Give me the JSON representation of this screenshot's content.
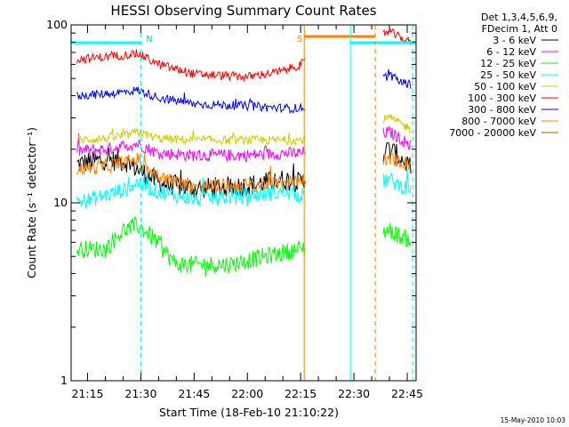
{
  "chart_data": {
    "type": "line",
    "title": "HESSI Observing Summary Count Rates",
    "xlabel": "Start Time (18-Feb-10 21:10:22)",
    "ylabel": "Count Rate (s⁻¹ detector⁻¹)",
    "y_scale": "log",
    "ylim": [
      1,
      100
    ],
    "xlim": [
      "21:10:22",
      "22:47:30"
    ],
    "x_ticks": [
      "21:15",
      "21:30",
      "21:45",
      "22:00",
      "22:15",
      "22:30",
      "22:45"
    ],
    "y_ticks": [
      "1",
      "10",
      "100"
    ],
    "grid": false,
    "legend_position": "right",
    "legend_header": [
      "Det 1,3,4,5,6,9,",
      "FDecim 1, Att 0"
    ],
    "timestamp": "15-May-2010 10:03",
    "series": [
      {
        "name": "3 - 6 keV",
        "color": "#000000",
        "x": [
          "21:12",
          "21:20",
          "21:26",
          "21:29",
          "21:35",
          "21:45",
          "22:00",
          "22:10",
          "22:15",
          "22:40",
          "22:43",
          "22:46"
        ],
        "values": [
          16.5,
          17.5,
          17,
          15.5,
          13,
          12,
          12.5,
          13.5,
          13,
          20,
          18,
          16
        ]
      },
      {
        "name": "6 - 12 keV",
        "color": "#ff00ff",
        "x": [
          "21:12",
          "21:20",
          "21:26",
          "21:29",
          "21:35",
          "21:45",
          "22:00",
          "22:10",
          "22:15",
          "22:40",
          "22:43",
          "22:46"
        ],
        "values": [
          19.5,
          20,
          21,
          21.5,
          19,
          18.5,
          18.5,
          19,
          19,
          25,
          23,
          21
        ]
      },
      {
        "name": "12 - 25 keV",
        "color": "#00ff00",
        "x": [
          "21:12",
          "21:20",
          "21:25",
          "21:29",
          "21:33",
          "21:40",
          "21:55",
          "22:05",
          "22:15",
          "22:40",
          "22:43",
          "22:46"
        ],
        "values": [
          5.5,
          5.5,
          7,
          7.5,
          6.5,
          4.5,
          4.5,
          5,
          5.5,
          7,
          6.5,
          6.2
        ]
      },
      {
        "name": "25 - 50 keV",
        "color": "#00ffff",
        "x": [
          "21:12",
          "21:20",
          "21:26",
          "21:29",
          "21:35",
          "21:45",
          "22:00",
          "22:10",
          "22:15",
          "22:40",
          "22:43",
          "22:46"
        ],
        "values": [
          10,
          11,
          12,
          13,
          11.5,
          10.5,
          11,
          11.5,
          11,
          13.5,
          12.5,
          12
        ]
      },
      {
        "name": "50 - 100 keV",
        "color": "#cccc00",
        "x": [
          "21:12",
          "21:20",
          "21:26",
          "21:29",
          "21:35",
          "21:45",
          "22:00",
          "22:10",
          "22:15",
          "22:40",
          "22:43",
          "22:46"
        ],
        "values": [
          22.5,
          23,
          24,
          25,
          23,
          22.5,
          22.5,
          22.5,
          22.5,
          30,
          28,
          26
        ]
      },
      {
        "name": "100 - 300 keV",
        "color": "#ff0000",
        "x": [
          "21:12",
          "21:20",
          "21:26",
          "21:29",
          "21:35",
          "21:45",
          "22:00",
          "22:10",
          "22:15",
          "22:40",
          "22:43",
          "22:46"
        ],
        "values": [
          64,
          66,
          68,
          69,
          60,
          53,
          51,
          55,
          60,
          92,
          85,
          80
        ]
      },
      {
        "name": "300 - 800 keV",
        "color": "#0000ff",
        "x": [
          "21:12",
          "21:20",
          "21:26",
          "21:29",
          "21:35",
          "21:45",
          "22:00",
          "22:10",
          "22:15",
          "22:40",
          "22:43",
          "22:46"
        ],
        "values": [
          40,
          41,
          42,
          43,
          39,
          36,
          35,
          34,
          34,
          52,
          48,
          46
        ]
      },
      {
        "name": "800 - 7000 keV",
        "color": "#ff8000",
        "x": [
          "21:12",
          "21:20",
          "21:26",
          "21:29",
          "21:35",
          "21:45",
          "22:00",
          "22:10",
          "22:15",
          "22:40",
          "22:43",
          "22:46"
        ],
        "values": [
          15.5,
          16,
          17,
          17.5,
          14,
          12.5,
          12.5,
          13,
          13.5,
          18,
          17,
          16.5
        ]
      },
      {
        "name": "7000 - 20000 keV",
        "color": "#996600",
        "x": [],
        "values": []
      }
    ],
    "annotations": [
      {
        "text": "N",
        "color": "#00cccc",
        "x": "21:30"
      },
      {
        "text": "S",
        "color": "#ff8000",
        "x": "22:16"
      }
    ]
  }
}
